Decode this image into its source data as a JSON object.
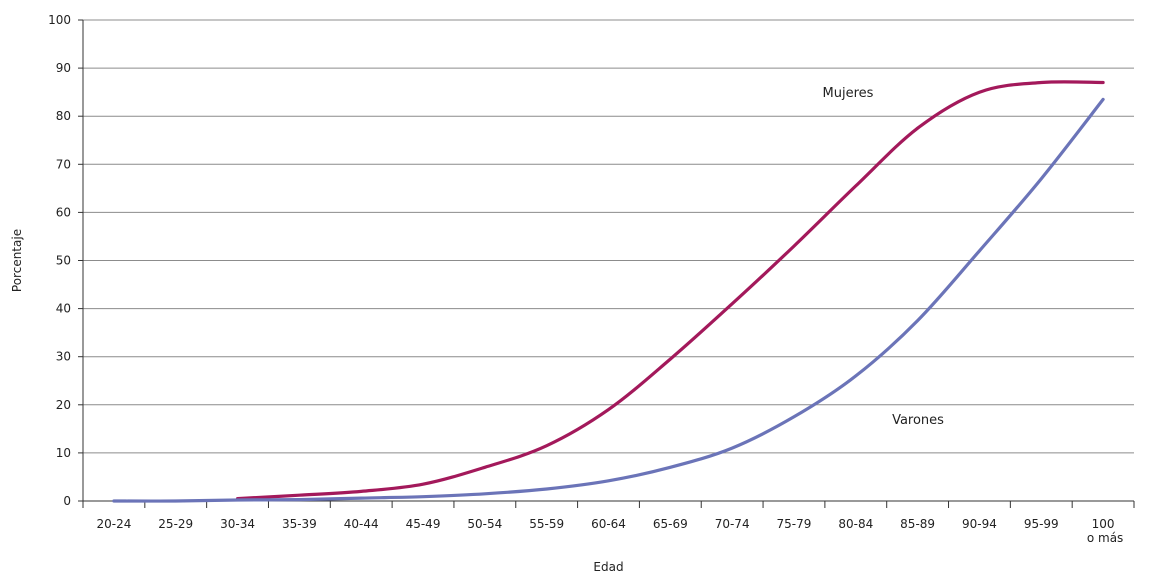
{
  "chart_data": {
    "type": "line",
    "title": "",
    "xlabel": "Edad",
    "ylabel": "Porcentaje",
    "ylim": [
      0,
      100
    ],
    "yticks": [
      0,
      10,
      20,
      30,
      40,
      50,
      60,
      70,
      80,
      90,
      100
    ],
    "grid": true,
    "categories": [
      [
        "20-24"
      ],
      [
        "25-29"
      ],
      [
        "30-34"
      ],
      [
        "35-39"
      ],
      [
        "40-44"
      ],
      [
        "45-49"
      ],
      [
        "50-54"
      ],
      [
        "55-59"
      ],
      [
        "60-64"
      ],
      [
        "65-69"
      ],
      [
        "70-74"
      ],
      [
        "75-79"
      ],
      [
        "80-84"
      ],
      [
        "85-89"
      ],
      [
        "90-94"
      ],
      [
        "95-99"
      ],
      [
        "100",
        "o más"
      ]
    ],
    "series": [
      {
        "name": "Mujeres",
        "color": "#a3195b",
        "values": [
          null,
          null,
          0.5,
          1.2,
          2.0,
          3.5,
          7.0,
          11.5,
          19.0,
          29.5,
          41.0,
          53.0,
          65.5,
          77.5,
          85.0,
          87.0,
          87.0
        ]
      },
      {
        "name": "Varones",
        "color": "#6b74b8",
        "values": [
          0,
          0,
          0.2,
          0.3,
          0.6,
          0.9,
          1.5,
          2.5,
          4.2,
          7.0,
          11.0,
          17.5,
          26.0,
          37.5,
          52.0,
          67.0,
          83.5
        ]
      }
    ]
  }
}
